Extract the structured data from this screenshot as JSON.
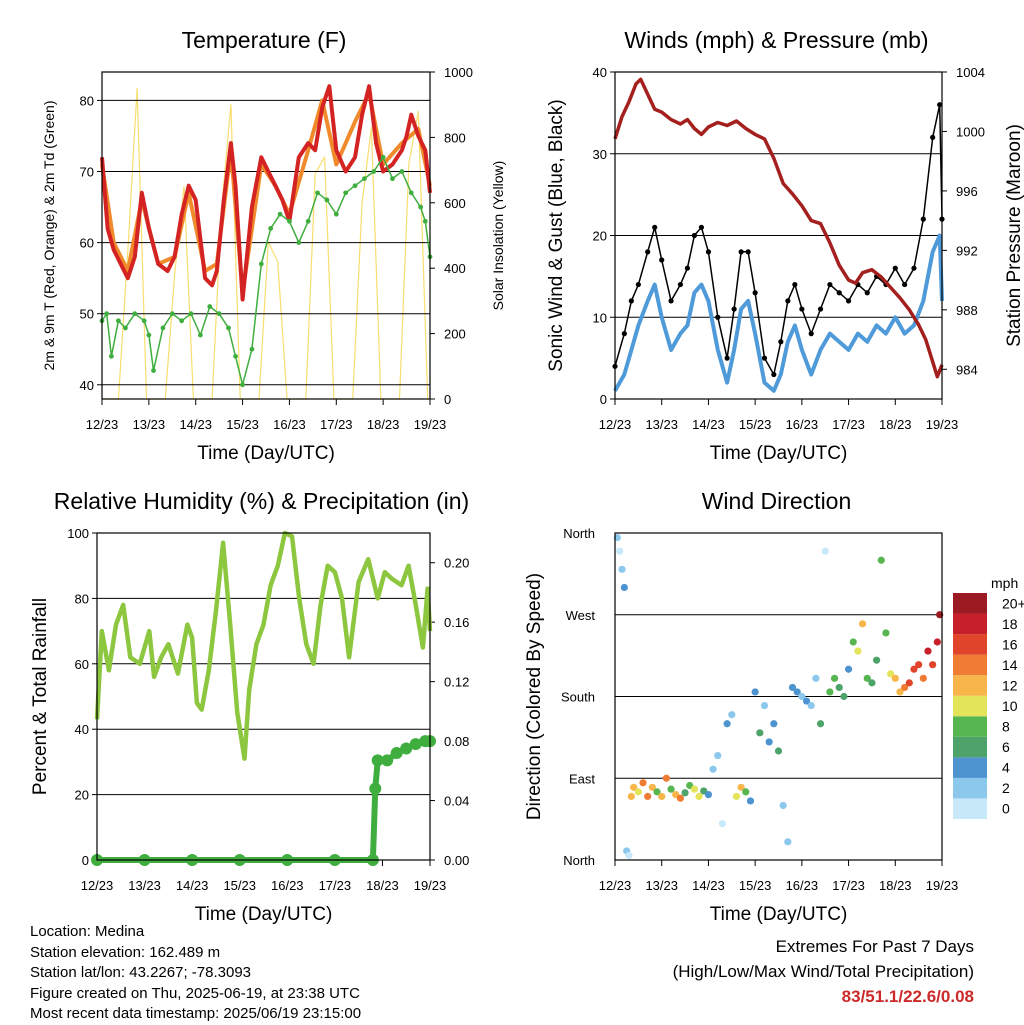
{
  "chart_data": [
    {
      "type": "line",
      "title": "Temperature (F)",
      "xlabel": "Time (Day/UTC)",
      "ylabel": "2m & 9m T (Red, Orange) & 2m Td (Green)",
      "ylabel_right": "Solar Insolation (Yellow)",
      "ylim": [
        38,
        84
      ],
      "yticks": [
        40,
        50,
        60,
        70,
        80
      ],
      "ylim_right": [
        0,
        1000
      ],
      "yticks_right": [
        0,
        200,
        400,
        600,
        800,
        1000
      ],
      "xticks": [
        "12/23",
        "13/23",
        "14/23",
        "15/23",
        "16/23",
        "17/23",
        "18/23",
        "19/23"
      ],
      "colors": {
        "t2m": "#d42323",
        "t9m": "#f08a2a",
        "td2m": "#3fae3f",
        "solar": "#f7de6f"
      },
      "series": [
        {
          "name": "2m T",
          "unit": "F",
          "x": [
            0,
            0.12,
            0.25,
            0.4,
            0.55,
            0.7,
            0.85,
            1.0,
            1.2,
            1.4,
            1.55,
            1.7,
            1.85,
            2.0,
            2.2,
            2.35,
            2.45,
            2.6,
            2.75,
            2.85,
            3.0,
            3.2,
            3.4,
            3.55,
            3.7,
            3.85,
            4.0,
            4.2,
            4.4,
            4.55,
            4.7,
            4.85,
            5.0,
            5.2,
            5.4,
            5.55,
            5.7,
            5.85,
            6.0,
            6.2,
            6.4,
            6.5,
            6.6,
            6.75,
            6.9,
            7.0
          ],
          "values": [
            72,
            62,
            59,
            57,
            55,
            58,
            67,
            62,
            57,
            56,
            58,
            64,
            68,
            66,
            55,
            54,
            56,
            66,
            74,
            68,
            52,
            65,
            72,
            70,
            68,
            66,
            63,
            72,
            74,
            73,
            79,
            82,
            73,
            70,
            72,
            78,
            82,
            74,
            70,
            71,
            73,
            75,
            78,
            75,
            73,
            67
          ]
        },
        {
          "name": "9m T",
          "unit": "F",
          "x": [
            0,
            0.25,
            0.55,
            0.85,
            1.2,
            1.55,
            1.85,
            2.2,
            2.45,
            2.75,
            3.0,
            3.4,
            3.7,
            4.0,
            4.4,
            4.7,
            5.0,
            5.4,
            5.7,
            6.0,
            6.4,
            6.75,
            7.0
          ],
          "values": [
            71,
            60,
            56,
            66,
            57,
            58,
            67,
            56,
            57,
            73,
            53,
            71,
            68,
            64,
            73,
            80,
            71,
            77,
            81,
            71,
            74,
            76,
            68
          ]
        },
        {
          "name": "2m Td",
          "unit": "F",
          "x": [
            0,
            0.1,
            0.2,
            0.35,
            0.5,
            0.7,
            0.9,
            1.0,
            1.1,
            1.3,
            1.5,
            1.7,
            1.9,
            2.1,
            2.3,
            2.5,
            2.7,
            2.85,
            3.0,
            3.2,
            3.4,
            3.6,
            3.8,
            4.0,
            4.2,
            4.4,
            4.6,
            4.8,
            5.0,
            5.2,
            5.4,
            5.6,
            5.8,
            6.0,
            6.2,
            6.4,
            6.6,
            6.8,
            6.9,
            7.0
          ],
          "values": [
            49,
            50,
            44,
            49,
            48,
            50,
            49,
            47,
            42,
            48,
            50,
            49,
            50,
            47,
            51,
            50,
            48,
            44,
            40,
            45,
            57,
            62,
            64,
            63,
            60,
            63,
            67,
            66,
            64,
            67,
            68,
            69,
            70,
            72,
            69,
            70,
            67,
            65,
            63,
            58
          ]
        },
        {
          "name": "Solar Insolation",
          "unit": "W/m2",
          "x": [
            0,
            0.35,
            0.55,
            0.75,
            0.95,
            1.35,
            1.55,
            1.75,
            1.95,
            2.35,
            2.55,
            2.75,
            2.95,
            3.35,
            3.55,
            3.75,
            3.95,
            4.35,
            4.55,
            4.75,
            4.95,
            5.35,
            5.55,
            5.75,
            5.95,
            6.35,
            6.55,
            6.75,
            6.95,
            7.0
          ],
          "values": [
            0,
            0,
            450,
            950,
            0,
            0,
            380,
            650,
            0,
            0,
            580,
            900,
            0,
            0,
            480,
            420,
            0,
            0,
            690,
            740,
            0,
            0,
            600,
            830,
            0,
            0,
            720,
            880,
            0,
            0
          ]
        }
      ]
    },
    {
      "type": "line",
      "title": "Winds (mph) & Pressure (mb)",
      "xlabel": "Time (Day/UTC)",
      "ylabel": "Sonic Wind & Gust (Blue, Black)",
      "ylabel_right": "Station Pressure (Maroon)",
      "ylim": [
        0,
        40
      ],
      "yticks": [
        0,
        10,
        20,
        30,
        40
      ],
      "ylim_right": [
        982,
        1004
      ],
      "yticks_right": [
        984,
        988,
        992,
        996,
        1000,
        1004
      ],
      "xticks": [
        "12/23",
        "13/23",
        "14/23",
        "15/23",
        "16/23",
        "17/23",
        "18/23",
        "19/23"
      ],
      "colors": {
        "wind": "#4f9ad8",
        "gust": "#000000",
        "pressure": "#a3201e"
      },
      "series": [
        {
          "name": "Sonic Wind",
          "unit": "mph",
          "x": [
            0,
            0.2,
            0.35,
            0.5,
            0.7,
            0.85,
            1.0,
            1.2,
            1.4,
            1.55,
            1.7,
            1.85,
            2.0,
            2.2,
            2.4,
            2.55,
            2.7,
            2.85,
            3.0,
            3.2,
            3.4,
            3.55,
            3.7,
            3.85,
            4.0,
            4.2,
            4.4,
            4.6,
            4.8,
            5.0,
            5.2,
            5.4,
            5.6,
            5.8,
            6.0,
            6.2,
            6.4,
            6.6,
            6.8,
            6.95,
            7.0
          ],
          "values": [
            1,
            3,
            6,
            9,
            12,
            14,
            10,
            6,
            8,
            9,
            13,
            14,
            12,
            6,
            2,
            6,
            11,
            12,
            8,
            2,
            1,
            3,
            7,
            9,
            6,
            3,
            6,
            8,
            7,
            6,
            8,
            7,
            9,
            8,
            10,
            8,
            9,
            12,
            18,
            20,
            12
          ]
        },
        {
          "name": "Gust",
          "unit": "mph",
          "x": [
            0,
            0.2,
            0.35,
            0.5,
            0.7,
            0.85,
            1.0,
            1.2,
            1.4,
            1.55,
            1.7,
            1.85,
            2.0,
            2.2,
            2.4,
            2.55,
            2.7,
            2.85,
            3.0,
            3.2,
            3.4,
            3.55,
            3.7,
            3.85,
            4.0,
            4.2,
            4.4,
            4.6,
            4.8,
            5.0,
            5.2,
            5.4,
            5.6,
            5.8,
            6.0,
            6.2,
            6.4,
            6.6,
            6.8,
            6.95,
            7.0
          ],
          "values": [
            4,
            8,
            12,
            14,
            18,
            21,
            17,
            12,
            14,
            16,
            20,
            21,
            18,
            10,
            5,
            11,
            18,
            18,
            13,
            5,
            3,
            7,
            12,
            14,
            11,
            8,
            11,
            14,
            13,
            12,
            14,
            13,
            15,
            14,
            16,
            14,
            16,
            22,
            32,
            36,
            22
          ]
        },
        {
          "name": "Station Pressure",
          "unit": "mb",
          "x": [
            0,
            0.15,
            0.3,
            0.45,
            0.55,
            0.7,
            0.85,
            1.0,
            1.2,
            1.4,
            1.55,
            1.7,
            1.85,
            2.0,
            2.2,
            2.4,
            2.6,
            2.8,
            3.0,
            3.2,
            3.4,
            3.6,
            3.8,
            4.0,
            4.2,
            4.4,
            4.6,
            4.8,
            5.0,
            5.15,
            5.3,
            5.5,
            5.7,
            5.9,
            6.1,
            6.3,
            6.5,
            6.65,
            6.8,
            6.9,
            7.0
          ],
          "values": [
            999.5,
            1001,
            1002,
            1003.2,
            1003.5,
            1002.5,
            1001.5,
            1001.3,
            1000.8,
            1000.5,
            1000.8,
            1000.2,
            999.8,
            1000.3,
            1000.6,
            1000.4,
            1000.7,
            1000.2,
            999.8,
            999.5,
            998.2,
            996.5,
            995.8,
            995.0,
            994.0,
            993.8,
            992.5,
            991.0,
            990.0,
            989.8,
            990.5,
            990.7,
            990.2,
            989.5,
            988.8,
            988.0,
            987.0,
            986.0,
            984.5,
            983.5,
            984.3
          ]
        }
      ]
    },
    {
      "type": "line",
      "title": "Relative Humidity (%) & Precipitation (in)",
      "xlabel": "Time (Day/UTC)",
      "ylabel": "Percent & Total Rainfall",
      "ylim": [
        0,
        100
      ],
      "yticks": [
        0,
        20,
        40,
        60,
        80,
        100
      ],
      "ylim_right": [
        0,
        0.22
      ],
      "yticks_right": [
        "0.00",
        "0.04",
        "0.08",
        "0.12",
        "0.16",
        "0.20"
      ],
      "xticks": [
        "12/23",
        "13/23",
        "14/23",
        "15/23",
        "16/23",
        "17/23",
        "18/23",
        "19/23"
      ],
      "colors": {
        "rh": "#8dc63f",
        "precip": "#3fae3f"
      },
      "series": [
        {
          "name": "Relative Humidity",
          "unit": "%",
          "x": [
            0,
            0.1,
            0.25,
            0.4,
            0.55,
            0.7,
            0.9,
            1.1,
            1.2,
            1.35,
            1.5,
            1.7,
            1.9,
            2.0,
            2.1,
            2.2,
            2.35,
            2.5,
            2.65,
            2.8,
            2.95,
            3.1,
            3.2,
            3.35,
            3.5,
            3.65,
            3.8,
            3.95,
            4.1,
            4.25,
            4.4,
            4.55,
            4.7,
            4.85,
            5.0,
            5.15,
            5.3,
            5.5,
            5.7,
            5.9,
            6.05,
            6.2,
            6.4,
            6.55,
            6.7,
            6.85,
            6.95,
            7.0
          ],
          "values": [
            43,
            70,
            58,
            72,
            78,
            62,
            60,
            70,
            56,
            62,
            66,
            57,
            72,
            68,
            48,
            46,
            58,
            76,
            97,
            72,
            45,
            31,
            52,
            66,
            72,
            84,
            90,
            100,
            99,
            80,
            66,
            60,
            78,
            90,
            88,
            80,
            62,
            85,
            92,
            80,
            88,
            86,
            84,
            90,
            78,
            65,
            83,
            70
          ]
        },
        {
          "name": "Total Rainfall",
          "unit": "in",
          "x": [
            0,
            1,
            2,
            3,
            4,
            5,
            5.8,
            5.85,
            5.9,
            6.1,
            6.3,
            6.5,
            6.7,
            6.9,
            7.0
          ],
          "values": [
            0,
            0,
            0,
            0,
            0,
            0,
            0,
            0.048,
            0.067,
            0.067,
            0.072,
            0.075,
            0.078,
            0.08,
            0.08
          ]
        }
      ]
    },
    {
      "type": "scatter",
      "title": "Wind Direction",
      "xlabel": "Time (Day/UTC)",
      "ylabel": "Direction (Colored By Speed)",
      "ylim": [
        0,
        360
      ],
      "yticks": [
        "North",
        "East",
        "South",
        "West",
        "North"
      ],
      "xticks": [
        "12/23",
        "13/23",
        "14/23",
        "15/23",
        "16/23",
        "17/23",
        "18/23",
        "19/23"
      ],
      "colorbar": {
        "title": "mph",
        "labels": [
          "0",
          "2",
          "4",
          "6",
          "8",
          "10",
          "12",
          "14",
          "16",
          "18",
          "20+"
        ],
        "colors": [
          "#c7e9fa",
          "#8cc7ec",
          "#4c93cf",
          "#4ea36a",
          "#58b651",
          "#e3e45a",
          "#f7b54a",
          "#f07b33",
          "#e0442b",
          "#c8202a",
          "#9c1a22"
        ]
      },
      "x": [
        0.05,
        0.1,
        0.15,
        0.2,
        0.25,
        0.3,
        0.35,
        0.4,
        0.5,
        0.6,
        0.7,
        0.8,
        0.9,
        1.0,
        1.1,
        1.2,
        1.3,
        1.4,
        1.5,
        1.6,
        1.7,
        1.8,
        1.9,
        2.0,
        2.1,
        2.2,
        2.3,
        2.4,
        2.5,
        2.6,
        2.7,
        2.8,
        2.9,
        3.0,
        3.1,
        3.2,
        3.3,
        3.4,
        3.5,
        3.6,
        3.7,
        3.8,
        3.9,
        4.0,
        4.1,
        4.2,
        4.3,
        4.4,
        4.5,
        4.6,
        4.7,
        4.8,
        4.9,
        5.0,
        5.1,
        5.2,
        5.3,
        5.4,
        5.5,
        5.6,
        5.7,
        5.8,
        5.9,
        6.0,
        6.1,
        6.2,
        6.3,
        6.4,
        6.5,
        6.6,
        6.7,
        6.8,
        6.9,
        6.95
      ],
      "values": [
        355,
        340,
        320,
        300,
        10,
        5,
        70,
        80,
        75,
        85,
        70,
        80,
        75,
        70,
        90,
        78,
        72,
        68,
        74,
        82,
        78,
        70,
        76,
        72,
        100,
        115,
        40,
        150,
        160,
        70,
        80,
        75,
        65,
        185,
        140,
        170,
        130,
        150,
        120,
        60,
        20,
        190,
        185,
        180,
        175,
        170,
        200,
        150,
        340,
        185,
        200,
        190,
        180,
        210,
        240,
        230,
        260,
        200,
        195,
        220,
        330,
        250,
        205,
        200,
        185,
        190,
        195,
        210,
        215,
        200,
        230,
        215,
        240,
        270
      ],
      "speeds": [
        2,
        1,
        3,
        4,
        2,
        1,
        13,
        12,
        10,
        14,
        15,
        12,
        9,
        13,
        14,
        8,
        12,
        15,
        6,
        9,
        11,
        10,
        7,
        4,
        3,
        2,
        1,
        5,
        3,
        11,
        13,
        9,
        4,
        5,
        6,
        2,
        4,
        5,
        7,
        3,
        2,
        4,
        5,
        3,
        4,
        2,
        3,
        6,
        1,
        8,
        9,
        7,
        6,
        5,
        8,
        10,
        12,
        9,
        7,
        6,
        9,
        8,
        10,
        12,
        13,
        15,
        16,
        17,
        16,
        15,
        18,
        17,
        19,
        20
      ]
    }
  ],
  "footer": {
    "location": "Location: Medina",
    "elevation": "Station elevation: 162.489 m",
    "latlon": "Station lat/lon: 43.2267; -78.3093",
    "created": "Figure created on Thu, 2025-06-19, at 23:38 UTC",
    "recent": "Most recent data timestamp: 2025/06/19 23:15:00",
    "extremes_title": "Extremes For Past 7 Days",
    "extremes_desc": "(High/Low/Max Wind/Total Precipitation)",
    "extremes_values": "83/51.1/22.6/0.08"
  }
}
